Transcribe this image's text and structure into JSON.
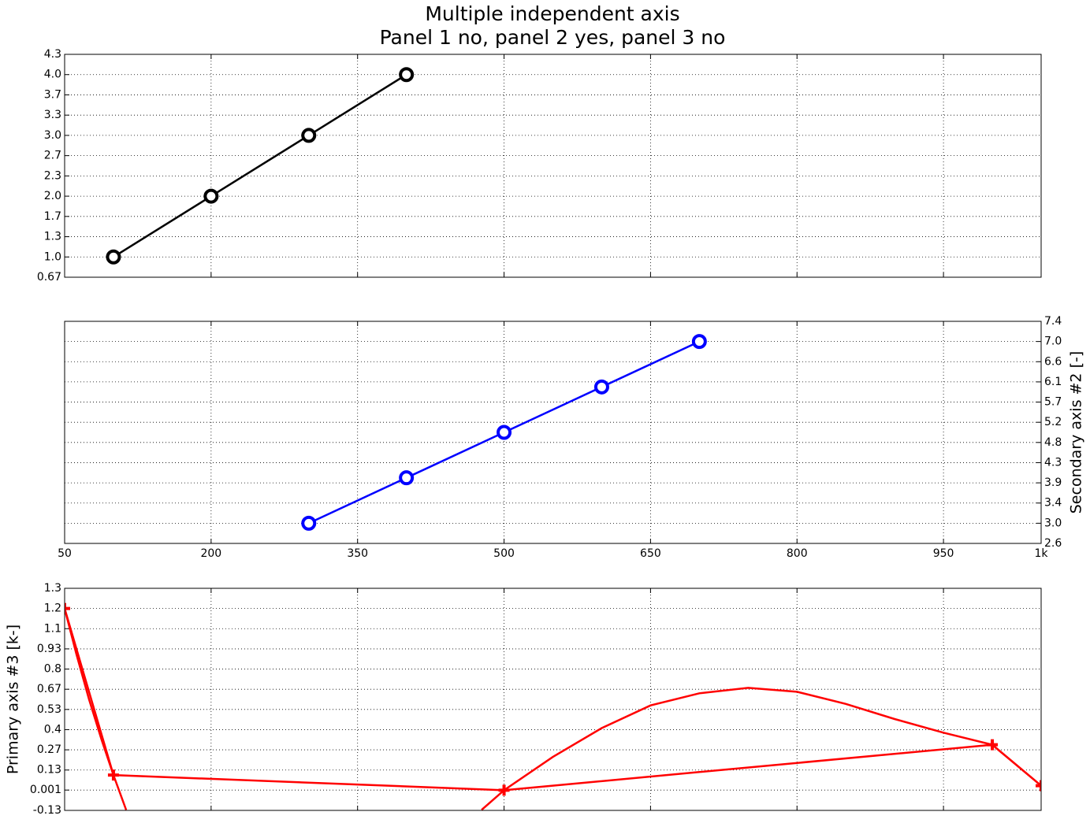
{
  "title": [
    "Multiple independent axis",
    "Panel 1 no, panel 2 yes, panel 3 no"
  ],
  "chart_data": [
    {
      "type": "line",
      "xlim": [
        50,
        1050
      ],
      "xticks": [
        50,
        200,
        350,
        500,
        650,
        800,
        950,
        1050
      ],
      "ylim": [
        0.6667,
        4.3333
      ],
      "yticks": [
        {
          "value": 0.6667,
          "label": "0.67"
        },
        {
          "value": 1,
          "label": "1.0"
        },
        {
          "value": 1.3333,
          "label": "1.3"
        },
        {
          "value": 1.6667,
          "label": "1.7"
        },
        {
          "value": 2,
          "label": "2.0"
        },
        {
          "value": 2.3333,
          "label": "2.3"
        },
        {
          "value": 2.6667,
          "label": "2.7"
        },
        {
          "value": 3,
          "label": "3.0"
        },
        {
          "value": 3.3333,
          "label": "3.3"
        },
        {
          "value": 3.6667,
          "label": "3.7"
        },
        {
          "value": 4,
          "label": "4.0"
        },
        {
          "value": 4.3333,
          "label": "4.3"
        }
      ],
      "grid": true,
      "series": [
        {
          "x": [
            100,
            200,
            300,
            400
          ],
          "values": [
            1,
            2,
            3,
            4
          ],
          "color": "#000000",
          "marker": "circle"
        }
      ]
    },
    {
      "type": "line",
      "xlim": [
        50,
        1050
      ],
      "show_xticklabels": true,
      "xticks": [
        50,
        200,
        350,
        500,
        650,
        800,
        950,
        {
          "value": 1050,
          "label": "1k"
        }
      ],
      "y2lim": [
        2.5556,
        7.4444
      ],
      "y2ticks": [
        {
          "value": 2.5556,
          "label": "2.6"
        },
        {
          "value": 3,
          "label": "3.0"
        },
        {
          "value": 3.4444,
          "label": "3.4"
        },
        {
          "value": 3.8889,
          "label": "3.9"
        },
        {
          "value": 4.3333,
          "label": "4.3"
        },
        {
          "value": 4.7778,
          "label": "4.8"
        },
        {
          "value": 5.2222,
          "label": "5.2"
        },
        {
          "value": 5.6667,
          "label": "5.7"
        },
        {
          "value": 6.1111,
          "label": "6.1"
        },
        {
          "value": 6.5556,
          "label": "6.6"
        },
        {
          "value": 7,
          "label": "7.0"
        },
        {
          "value": 7.4444,
          "label": "7.4"
        }
      ],
      "y2label": "Secondary axis #2 [-]",
      "grid": true,
      "series": [
        {
          "x": [
            300,
            400,
            500,
            600,
            700
          ],
          "values": [
            3,
            4,
            5,
            6,
            7
          ],
          "color": "#0000ff",
          "marker": "circle",
          "axis": "y2"
        }
      ]
    },
    {
      "type": "line",
      "xlim": [
        50,
        1050
      ],
      "xticks": [
        50,
        200,
        350,
        500,
        650,
        800,
        950,
        1050
      ],
      "ylim": [
        -0.1333,
        1.3333
      ],
      "yticks": [
        {
          "value": -0.1333,
          "label": "-0.13"
        },
        0.001,
        {
          "value": 0.1333,
          "label": "0.13"
        },
        {
          "value": 0.2667,
          "label": "0.27"
        },
        0.4,
        {
          "value": 0.5333,
          "label": "0.53"
        },
        {
          "value": 0.6667,
          "label": "0.67"
        },
        0.8,
        {
          "value": 0.9333,
          "label": "0.93"
        },
        {
          "value": 1.0667,
          "label": "1.1"
        },
        1.2,
        {
          "value": 1.3333,
          "label": "1.3"
        }
      ],
      "ylabel": "Primary axis #3 [k-]",
      "grid": true,
      "series": [
        {
          "x": [
            50,
            62,
            75,
            88,
            100,
            113,
            300,
            477,
            500,
            550,
            600,
            650,
            700,
            750,
            800,
            850,
            900,
            950,
            1000,
            1050
          ],
          "values": [
            1.2,
            0.9,
            0.6,
            0.33,
            0.1,
            -0.13,
            null,
            -0.13,
            0,
            0.22,
            0.41,
            0.56,
            0.64,
            0.676,
            0.65,
            0.57,
            0.47,
            0.38,
            0.3,
            0.03
          ],
          "color": "#ff0000",
          "marker": "none"
        },
        {
          "x": [
            50,
            100,
            500,
            1000,
            1050
          ],
          "values": [
            1.2,
            0.1,
            0,
            0.3,
            0.03
          ],
          "color": "#ff0000",
          "marker": "plus"
        }
      ]
    }
  ]
}
